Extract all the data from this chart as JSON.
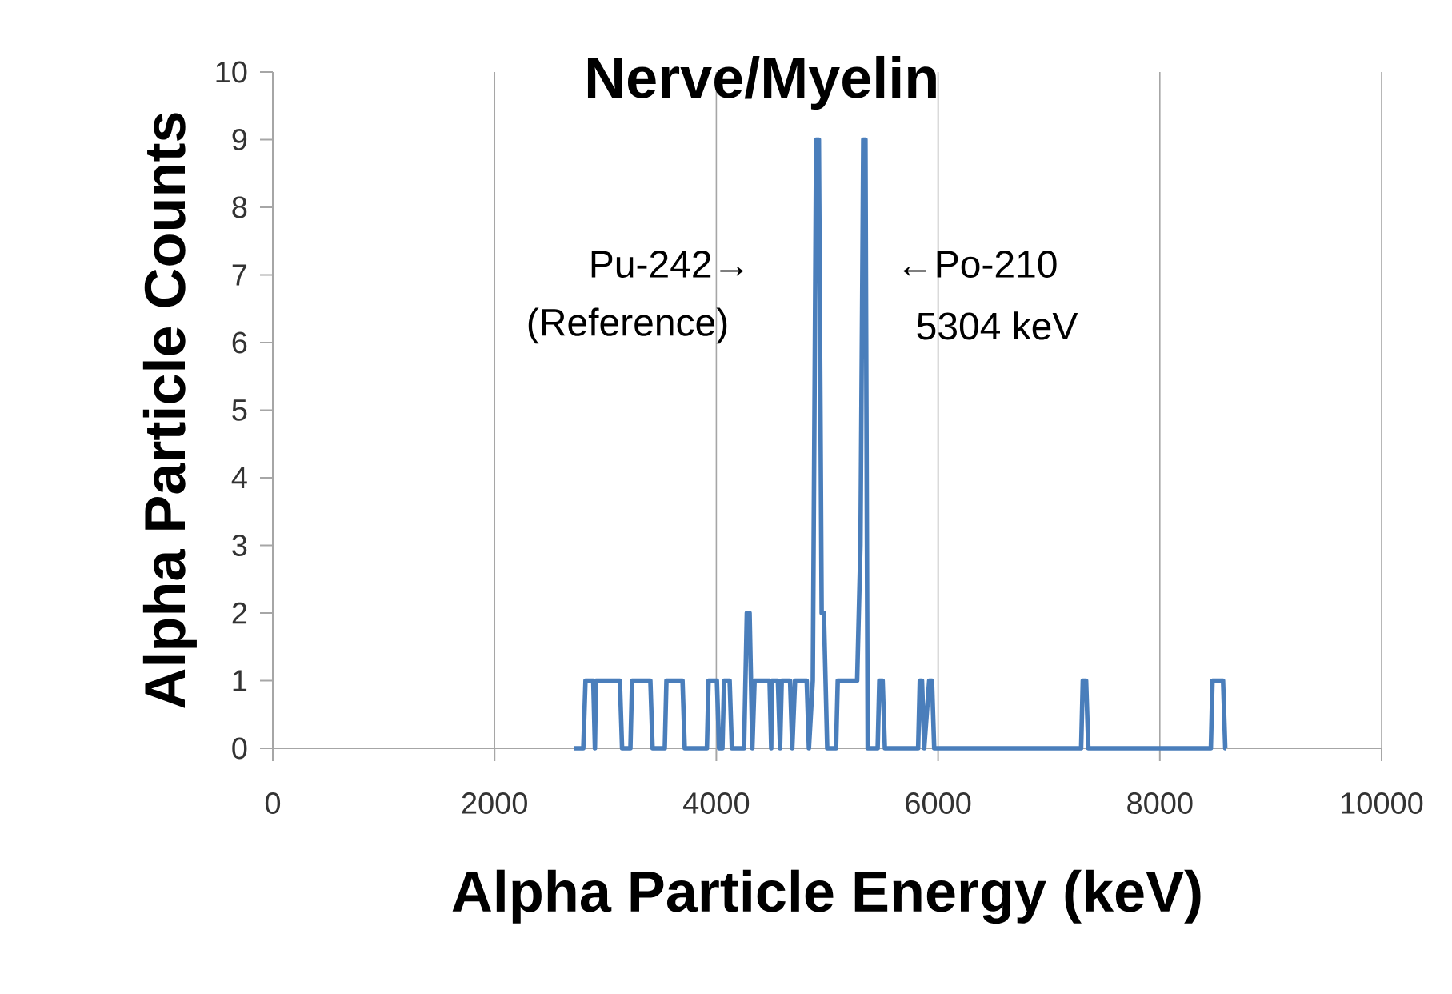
{
  "chart_data": {
    "type": "line",
    "title": "Nerve/Myelin",
    "xlabel": "Alpha Particle Energy (keV)",
    "ylabel": "Alpha Particle Counts",
    "annotations": [
      "Pu-242→",
      "(Reference)",
      "←Po-210",
      "5304 keV"
    ],
    "x": [
      2720,
      2800,
      2820,
      2890,
      2905,
      2915,
      3130,
      3150,
      3225,
      3240,
      3405,
      3425,
      3535,
      3550,
      3695,
      3715,
      3915,
      3930,
      4005,
      4025,
      4055,
      4070,
      4120,
      4140,
      4250,
      4275,
      4300,
      4325,
      4345,
      4480,
      4495,
      4500,
      4555,
      4575,
      4590,
      4665,
      4685,
      4710,
      4815,
      4835,
      4870,
      4900,
      4925,
      4950,
      4970,
      5000,
      5080,
      5095,
      5240,
      5270,
      5300,
      5325,
      5345,
      5365,
      5455,
      5470,
      5500,
      5520,
      5820,
      5835,
      5855,
      5875,
      5920,
      5945,
      5965,
      7290,
      7305,
      7335,
      7355,
      8460,
      8475,
      8570,
      8590,
      8600
    ],
    "series": [
      {
        "color": "#4a7ebb",
        "values": [
          0,
          0,
          1,
          1,
          0,
          1,
          1,
          0,
          0,
          1,
          1,
          0,
          0,
          1,
          1,
          0,
          0,
          1,
          1,
          0,
          0,
          1,
          1,
          0,
          0,
          2,
          2,
          0,
          1,
          1,
          0,
          1,
          1,
          0,
          1,
          1,
          0,
          1,
          1,
          0,
          1,
          9,
          9,
          2,
          2,
          0,
          0,
          1,
          1,
          1,
          3,
          9,
          9,
          0,
          0,
          1,
          1,
          0,
          0,
          1,
          1,
          0,
          1,
          1,
          0,
          0,
          1,
          1,
          0,
          0,
          1,
          1,
          0,
          0
        ]
      }
    ],
    "xlim": [
      0,
      10000
    ],
    "ylim": [
      0,
      10
    ],
    "xticks": [
      0,
      2000,
      4000,
      6000,
      8000,
      10000
    ],
    "yticks": [
      0,
      1,
      2,
      3,
      4,
      5,
      6,
      7,
      8,
      9,
      10
    ],
    "grid": "x",
    "marker": "none",
    "line_style": "solid"
  }
}
